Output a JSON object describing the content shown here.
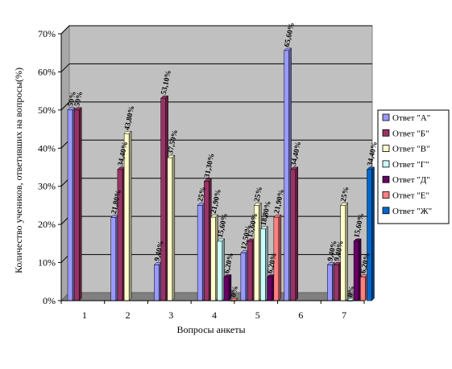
{
  "chart_data": {
    "type": "bar",
    "categories": [
      "1",
      "2",
      "3",
      "4",
      "5",
      "6",
      "7"
    ],
    "xlabel": "Вопросы анкеты",
    "ylabel": "Количество учеников, ответивших на вопросы(%)",
    "ylim": [
      0,
      70
    ],
    "yticks": [
      "0%",
      "10%",
      "20%",
      "30%",
      "40%",
      "50%",
      "60%",
      "70%"
    ],
    "grid": true,
    "legend_position": "right",
    "series": [
      {
        "name": "Ответ \"А\"",
        "color": "#9999FF",
        "values": [
          50,
          21.8,
          9.4,
          25,
          12.5,
          65.6,
          9.4
        ],
        "labels": [
          "50%",
          "21,80%",
          "9,40%",
          "25%",
          "12,50%",
          "65,60%",
          "9,40%"
        ]
      },
      {
        "name": "Ответ \"Б\"",
        "color": "#993366",
        "values": [
          50,
          34.4,
          53.1,
          31.3,
          15.6,
          34.4,
          9.4
        ],
        "labels": [
          "50%",
          "34,40%",
          "53,10%",
          "31,30%",
          "15,60%",
          "34,40%",
          "9,40%"
        ]
      },
      {
        "name": "Ответ \"В\"",
        "color": "#FFFFCC",
        "values": [
          null,
          43.8,
          37.5,
          21.9,
          25,
          null,
          25
        ],
        "labels": [
          "",
          "43,80%",
          "37,50%",
          "21,90%",
          "25%",
          "",
          "25%"
        ]
      },
      {
        "name": "Ответ \"Г\"",
        "color": "#CCFFFF",
        "values": [
          null,
          null,
          null,
          15.6,
          18.8,
          null,
          0
        ],
        "labels": [
          "",
          "",
          "",
          "15,60%",
          "18,80%",
          "",
          "0%"
        ]
      },
      {
        "name": "Ответ \"Д\"",
        "color": "#660066",
        "values": [
          null,
          null,
          null,
          6.2,
          6.2,
          null,
          15.6
        ],
        "labels": [
          "",
          "",
          "",
          "6,20%",
          "6,20%",
          "",
          "15,60%"
        ]
      },
      {
        "name": "Ответ \"Е\"",
        "color": "#FF8080",
        "values": [
          null,
          null,
          null,
          0,
          21.9,
          null,
          6.2
        ],
        "labels": [
          "",
          "",
          "",
          "0%",
          "21,90%",
          "",
          "6,20%"
        ]
      },
      {
        "name": "Ответ \"Ж\"",
        "color": "#0066CC",
        "values": [
          null,
          null,
          null,
          null,
          null,
          null,
          34.4
        ],
        "labels": [
          "",
          "",
          "",
          "",
          "",
          "",
          "34,40%"
        ]
      }
    ]
  }
}
